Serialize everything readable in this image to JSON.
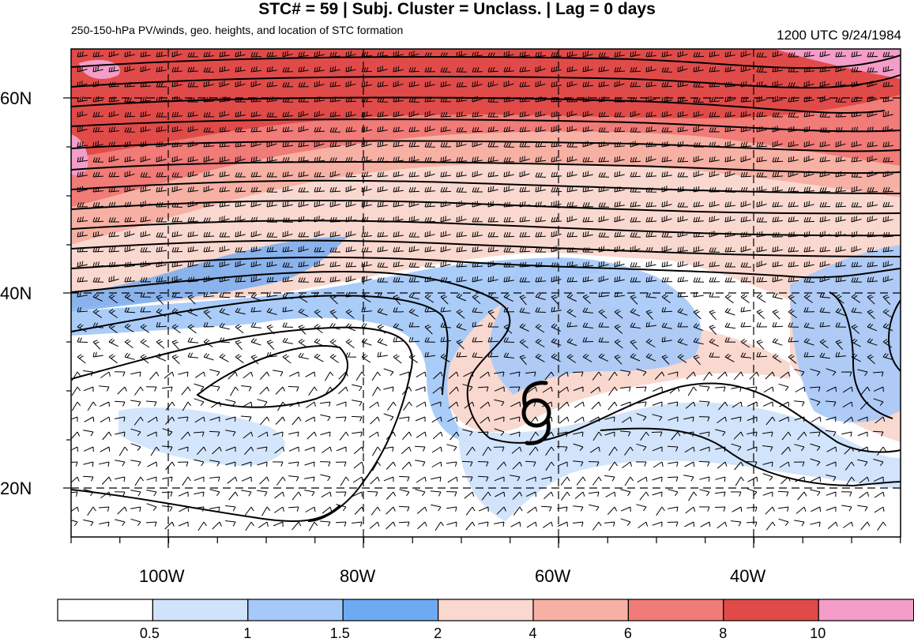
{
  "figure": {
    "title": "STC# = 59 | Subj. Cluster = Unclass. | Lag = 0 days",
    "subtitle": "250-150-hPa PV/winds, geo. heights, and location of STC formation",
    "timestamp": "1200 UTC  9/24/1984"
  },
  "map": {
    "lat_labels": [
      "60N",
      "40N",
      "20N"
    ],
    "lon_labels": [
      "100W",
      "80W",
      "60W",
      "40W"
    ],
    "lon_range": [
      -110,
      -25
    ],
    "lat_range": [
      15,
      65
    ],
    "grid_lons": [
      -100,
      -80,
      -60,
      -40
    ],
    "grid_lats": [
      60,
      40,
      20
    ],
    "stc_symbol": "tropical-cyclone-symbol",
    "stc_location": {
      "lon": -63,
      "lat": 28
    }
  },
  "colorbar": {
    "labels": [
      "0.5",
      "1",
      "1.5",
      "2",
      "4",
      "6",
      "8",
      "10"
    ],
    "colors": [
      "#ffffff",
      "#cfe3fb",
      "#a5c9f8",
      "#6eaaf3",
      "#f9d8cf",
      "#f6b1a4",
      "#f07b77",
      "#e04b49",
      "#f39dc8"
    ]
  },
  "chart_data": {
    "type": "heatmap",
    "title": "STC# = 59 | Subj. Cluster = Unclass. | Lag = 0 days",
    "variable": "250-150-hPa PV",
    "levels": [
      0.5,
      1,
      1.5,
      2,
      4,
      6,
      8,
      10
    ],
    "x": [
      -100,
      -80,
      -60,
      -40
    ],
    "y": [
      20,
      40,
      60
    ],
    "xlim": [
      -110,
      -25
    ],
    "ylim": [
      15,
      65
    ],
    "grid": true,
    "legend": "bottom",
    "stc_location": {
      "lon": -63,
      "lat": 28
    }
  }
}
